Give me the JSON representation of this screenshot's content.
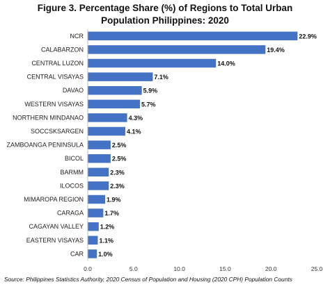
{
  "chart_data": {
    "type": "bar",
    "orientation": "horizontal",
    "title_line1": "Figure 3. Percentage Share (%) of Regions to Total Urban",
    "title_line2": "Population Philippines: 2020",
    "categories": [
      "NCR",
      "CALABARZON",
      "CENTRAL LUZON",
      "CENTRAL VISAYAS",
      "DAVAO",
      "WESTERN VISAYAS",
      "NORTHERN MINDANAO",
      "SOCCSKSARGEN",
      "ZAMBOANGA PENINSULA",
      "BICOL",
      "BARMM",
      "ILOCOS",
      "MIMAROPA REGION",
      "CARAGA",
      "CAGAYAN VALLEY",
      "EASTERN VISAYAS",
      "CAR"
    ],
    "values": [
      22.9,
      19.4,
      14.0,
      7.1,
      5.9,
      5.7,
      4.3,
      4.1,
      2.5,
      2.5,
      2.3,
      2.3,
      1.9,
      1.7,
      1.2,
      1.1,
      1.0
    ],
    "value_labels": [
      "22.9%",
      "19.4%",
      "14.0%",
      "7.1%",
      "5.9%",
      "5.7%",
      "4.3%",
      "4.1%",
      "2.5%",
      "2.5%",
      "2.3%",
      "2.3%",
      "1.9%",
      "1.7%",
      "1.2%",
      "1.1%",
      "1.0%"
    ],
    "xlim": [
      0,
      25
    ],
    "xticks": [
      "0.0",
      "5.0",
      "10.0",
      "15.0",
      "20.0",
      "25.0"
    ],
    "grid": false,
    "bar_color": "#4472C4",
    "source": "Source: Philippines Statistics Authority, 2020 Census of Population and Housing (2020 CPH) Population Counts"
  }
}
